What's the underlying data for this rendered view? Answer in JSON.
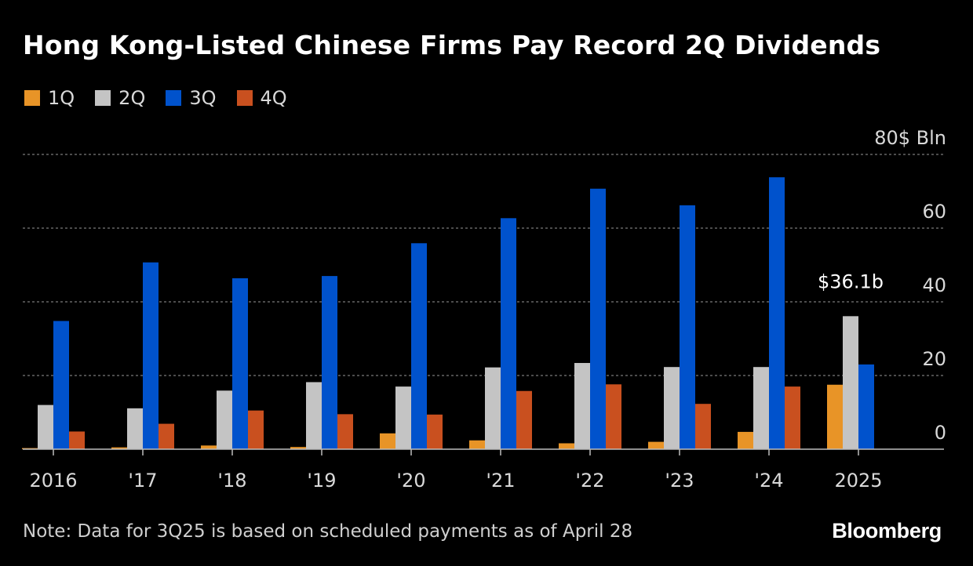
{
  "title": "Hong Kong-Listed Chinese Firms Pay Record 2Q Dividends",
  "note": "Note: Data for 3Q25 is based on scheduled payments as of April 28",
  "brand": "Bloomberg",
  "chart_data": {
    "type": "bar",
    "title": "Hong Kong-Listed Chinese Firms Pay Record 2Q Dividends",
    "categories": [
      "2016",
      "'17",
      "'18",
      "'19",
      "'20",
      "'21",
      "'22",
      "'23",
      "'24",
      "2025"
    ],
    "series": [
      {
        "name": "1Q",
        "color": "#e89427",
        "values": [
          0.3,
          0.5,
          1.0,
          0.6,
          4.3,
          2.4,
          1.6,
          2.0,
          4.7,
          17.5
        ]
      },
      {
        "name": "2Q",
        "color": "#c4c4c4",
        "values": [
          12.0,
          11.1,
          15.9,
          18.2,
          17.0,
          22.2,
          23.4,
          22.3,
          22.3,
          36.1
        ]
      },
      {
        "name": "3Q",
        "color": "#0052cc",
        "values": [
          34.8,
          50.7,
          46.4,
          47.0,
          55.9,
          62.7,
          70.7,
          66.2,
          73.8,
          23.0
        ]
      },
      {
        "name": "4Q",
        "color": "#c9501f",
        "values": [
          4.8,
          6.9,
          10.5,
          9.5,
          9.4,
          15.8,
          17.6,
          12.3,
          17.0,
          null
        ]
      }
    ],
    "y_axis": {
      "min": 0,
      "max": 80,
      "ticks": [
        0,
        20,
        40,
        60,
        80
      ],
      "tick_labels": [
        "0",
        "20",
        "40",
        "60",
        "80$ Bln"
      ]
    },
    "grid": true,
    "legend_position": "top-left",
    "annotations": [
      {
        "text": "$36.1b",
        "category": "2025",
        "series": "2Q"
      }
    ]
  }
}
